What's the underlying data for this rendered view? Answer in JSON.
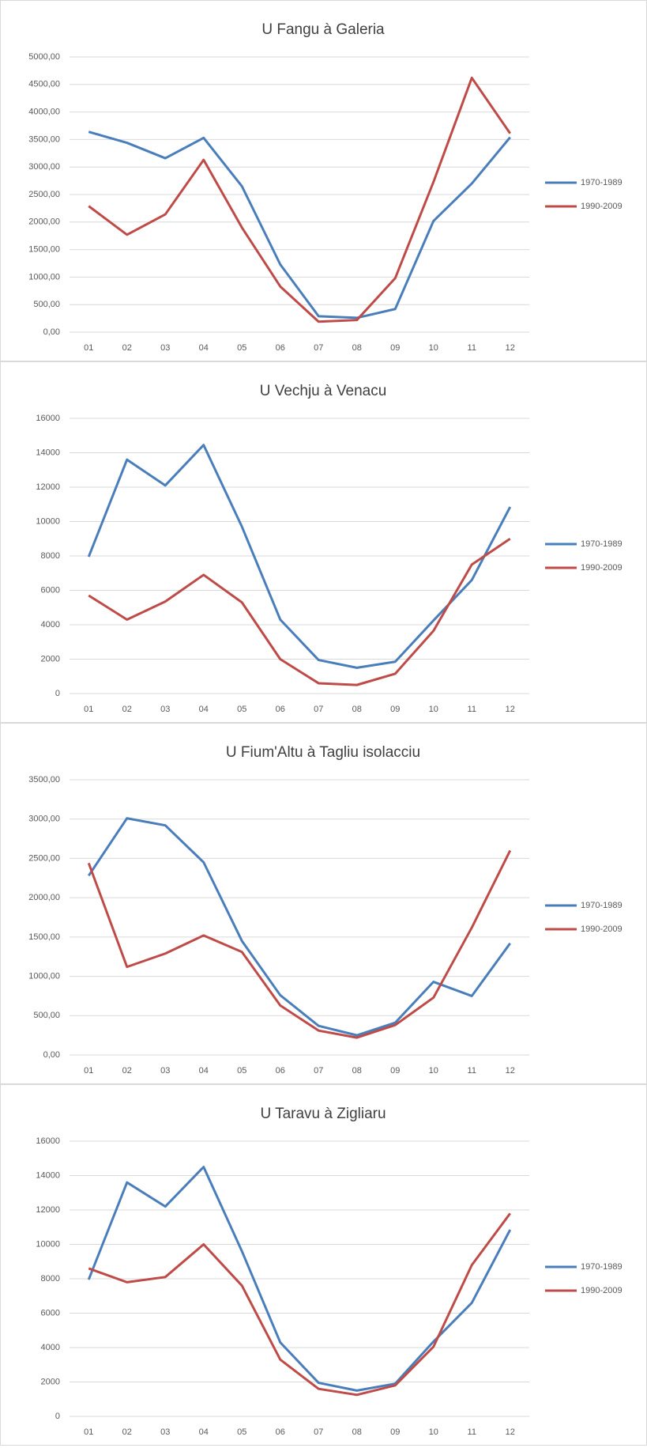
{
  "chart_data": [
    {
      "type": "line",
      "title": "U Fangu à Galeria",
      "categories": [
        "01",
        "02",
        "03",
        "04",
        "05",
        "06",
        "07",
        "08",
        "09",
        "10",
        "11",
        "12"
      ],
      "ylim": [
        0,
        5000
      ],
      "yticks": [
        {
          "value": 0,
          "label": "0,00"
        },
        {
          "value": 500,
          "label": "500,00"
        },
        {
          "value": 1000,
          "label": "1000,00"
        },
        {
          "value": 1500,
          "label": "1500,00"
        },
        {
          "value": 2000,
          "label": "2000,00"
        },
        {
          "value": 2500,
          "label": "2500,00"
        },
        {
          "value": 3000,
          "label": "3000,00"
        },
        {
          "value": 3500,
          "label": "3500,00"
        },
        {
          "value": 4000,
          "label": "4000,00"
        },
        {
          "value": 4500,
          "label": "4500,00"
        },
        {
          "value": 5000,
          "label": "5000,00"
        }
      ],
      "grid": true,
      "legend": "right",
      "series": [
        {
          "name": "1970-1989",
          "color": "#4a7ebb",
          "values": [
            3640,
            3440,
            3160,
            3530,
            2650,
            1230,
            290,
            260,
            420,
            2020,
            2700,
            3540
          ]
        },
        {
          "name": "1990-2009",
          "color": "#be4b48",
          "values": [
            2290,
            1770,
            2140,
            3130,
            1900,
            830,
            190,
            220,
            980,
            2730,
            4620,
            3610
          ]
        }
      ]
    },
    {
      "type": "line",
      "title": "U Vechju à Venacu",
      "categories": [
        "01",
        "02",
        "03",
        "04",
        "05",
        "06",
        "07",
        "08",
        "09",
        "10",
        "11",
        "12"
      ],
      "ylim": [
        0,
        16000
      ],
      "yticks": [
        0,
        2000,
        4000,
        6000,
        8000,
        10000,
        12000,
        14000,
        16000
      ],
      "grid": true,
      "legend": "right",
      "series": [
        {
          "name": "1970-1989",
          "color": "#4a7ebb",
          "values": [
            7950,
            13600,
            12100,
            14450,
            9700,
            4300,
            1950,
            1500,
            1850,
            4250,
            6600,
            10850
          ]
        },
        {
          "name": "1990-2009",
          "color": "#be4b48",
          "values": [
            5700,
            4300,
            5350,
            6900,
            5300,
            2000,
            600,
            500,
            1150,
            3650,
            7500,
            9000
          ]
        }
      ]
    },
    {
      "type": "line",
      "title": "U Fium'Altu à Tagliu isolacciu",
      "categories": [
        "01",
        "02",
        "03",
        "04",
        "05",
        "06",
        "07",
        "08",
        "09",
        "10",
        "11",
        "12"
      ],
      "ylim": [
        0,
        3500
      ],
      "yticks": [
        {
          "value": 0,
          "label": "0,00"
        },
        {
          "value": 500,
          "label": "500,00"
        },
        {
          "value": 1000,
          "label": "1000,00"
        },
        {
          "value": 1500,
          "label": "1500,00"
        },
        {
          "value": 2000,
          "label": "2000,00"
        },
        {
          "value": 2500,
          "label": "2500,00"
        },
        {
          "value": 3000,
          "label": "3000,00"
        },
        {
          "value": 3500,
          "label": "3500,00"
        }
      ],
      "grid": true,
      "legend": "right",
      "series": [
        {
          "name": "1970-1989",
          "color": "#4a7ebb",
          "values": [
            2280,
            3010,
            2920,
            2450,
            1450,
            760,
            370,
            250,
            410,
            930,
            750,
            1420
          ]
        },
        {
          "name": "1990-2009",
          "color": "#be4b48",
          "values": [
            2440,
            1120,
            1290,
            1520,
            1310,
            630,
            310,
            220,
            380,
            730,
            1620,
            2600
          ]
        }
      ]
    },
    {
      "type": "line",
      "title": "U Taravu à Zigliaru",
      "categories": [
        "01",
        "02",
        "03",
        "04",
        "05",
        "06",
        "07",
        "08",
        "09",
        "10",
        "11",
        "12"
      ],
      "ylim": [
        0,
        16000
      ],
      "yticks": [
        0,
        2000,
        4000,
        6000,
        8000,
        10000,
        12000,
        14000,
        16000
      ],
      "grid": true,
      "legend": "right",
      "series": [
        {
          "name": "1970-1989",
          "color": "#4a7ebb",
          "values": [
            7950,
            13600,
            12200,
            14500,
            9600,
            4300,
            1950,
            1500,
            1900,
            4350,
            6600,
            10850
          ]
        },
        {
          "name": "1990-2009",
          "color": "#be4b48",
          "values": [
            8600,
            7800,
            8100,
            10000,
            7600,
            3300,
            1600,
            1250,
            1800,
            4050,
            8800,
            11800
          ]
        }
      ]
    }
  ]
}
